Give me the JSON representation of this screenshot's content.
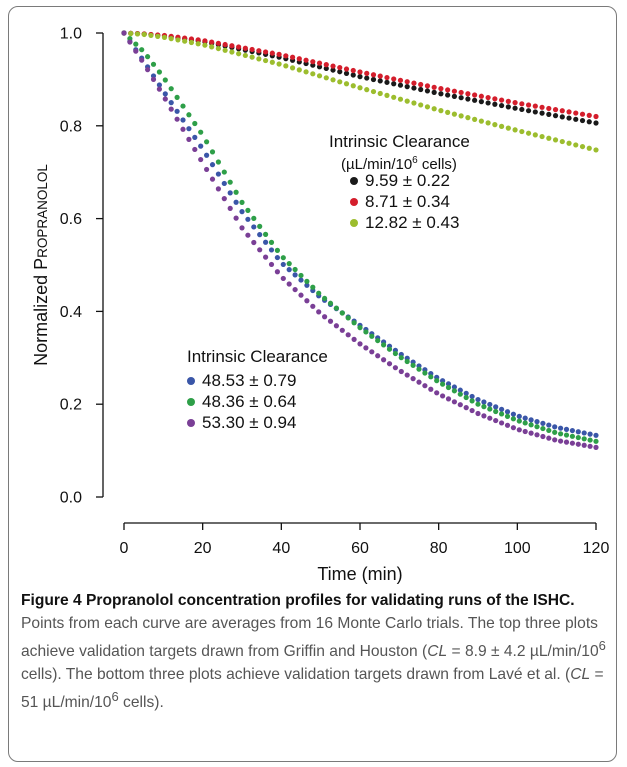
{
  "chart_data": {
    "type": "scatter",
    "xlabel": "Time (min)",
    "ylabel": {
      "prefix": "Normalized ",
      "first": "P",
      "rest": "ROPRANOLOL"
    },
    "xlim": [
      0,
      120
    ],
    "ylim": [
      0.0,
      1.0
    ],
    "xticks": [
      "0",
      "20",
      "40",
      "60",
      "80",
      "100",
      "120"
    ],
    "yticks": [
      "0.0",
      "0.2",
      "0.4",
      "0.6",
      "0.8",
      "1.0"
    ],
    "grid": false,
    "legends": [
      {
        "title": "Intrinsic Clearance",
        "subtitle": "(µL/min/10",
        "subtitle_sup": "6",
        "subtitle_end": " cells)",
        "placement": "upper-right",
        "entries": [
          "9.59 ± 0.22",
          "8.71 ± 0.34",
          "12.82 ± 0.43"
        ]
      },
      {
        "title": "Intrinsic Clearance",
        "placement": "middle-left",
        "entries": [
          "48.53 ± 0.79",
          "48.36 ± 0.64",
          "53.30 ± 0.94"
        ]
      }
    ],
    "series": [
      {
        "name": "9.59 ± 0.22",
        "color": "#1a1a1a",
        "x_start": 0,
        "x_end": 120,
        "points": 71,
        "x": [
          0,
          5,
          10,
          20,
          40,
          60,
          80,
          100,
          120
        ],
        "y": [
          1.0,
          0.998,
          0.994,
          0.982,
          0.947,
          0.906,
          0.87,
          0.837,
          0.806
        ]
      },
      {
        "name": "8.71 ± 0.34",
        "color": "#d41e2c",
        "x_start": 0,
        "x_end": 120,
        "points": 71,
        "x": [
          0,
          5,
          10,
          20,
          40,
          60,
          80,
          100,
          120
        ],
        "y": [
          1.0,
          0.998,
          0.995,
          0.984,
          0.953,
          0.916,
          0.881,
          0.849,
          0.82
        ]
      },
      {
        "name": "12.82 ± 0.43",
        "color": "#9cbd2e",
        "x_start": 0,
        "x_end": 120,
        "points": 71,
        "x": [
          0,
          5,
          10,
          20,
          40,
          60,
          80,
          100,
          120
        ],
        "y": [
          1.0,
          0.997,
          0.991,
          0.975,
          0.932,
          0.882,
          0.834,
          0.79,
          0.748
        ]
      },
      {
        "name": "48.53 ± 0.79",
        "color": "#3a56a8",
        "x_start": 0,
        "x_end": 120,
        "points": 81,
        "x": [
          0,
          5,
          10,
          20,
          30,
          40,
          50,
          60,
          70,
          80,
          90,
          100,
          110,
          120
        ],
        "y": [
          1.0,
          0.94,
          0.875,
          0.75,
          0.615,
          0.505,
          0.43,
          0.37,
          0.31,
          0.255,
          0.21,
          0.175,
          0.15,
          0.133
        ]
      },
      {
        "name": "48.36 ± 0.64",
        "color": "#2e9f48",
        "x_start": 0,
        "x_end": 120,
        "points": 81,
        "x": [
          0,
          5,
          10,
          20,
          30,
          40,
          50,
          60,
          70,
          80,
          90,
          100,
          110,
          120
        ],
        "y": [
          1.0,
          0.96,
          0.905,
          0.78,
          0.635,
          0.52,
          0.435,
          0.365,
          0.303,
          0.248,
          0.2,
          0.165,
          0.138,
          0.12
        ]
      },
      {
        "name": "53.30 ± 0.94",
        "color": "#7a3f96",
        "x_start": 0,
        "x_end": 120,
        "points": 81,
        "x": [
          0,
          5,
          10,
          20,
          30,
          40,
          50,
          60,
          70,
          80,
          90,
          100,
          110,
          120
        ],
        "y": [
          1.0,
          0.935,
          0.865,
          0.72,
          0.58,
          0.475,
          0.395,
          0.33,
          0.273,
          0.222,
          0.18,
          0.146,
          0.122,
          0.107
        ]
      }
    ]
  },
  "caption": {
    "title": "Figure 4 Propranolol concentration profiles for validating runs of the ISHC.",
    "sentence1": " Points from each curve are averages from 16 Monte Carlo trials. The top three plots achieve validation targets drawn from Griffin and Houston (",
    "cl_symbol": "CL",
    "value1": " = 8.9 ± 4.2 µL/min/10",
    "sup1": "6",
    "end1": " cells). The bottom three plots achieve validation targets drawn from Lavé et al. (",
    "value2": " = 51 µL/min/10",
    "sup2": "6",
    "end2": " cells)."
  }
}
